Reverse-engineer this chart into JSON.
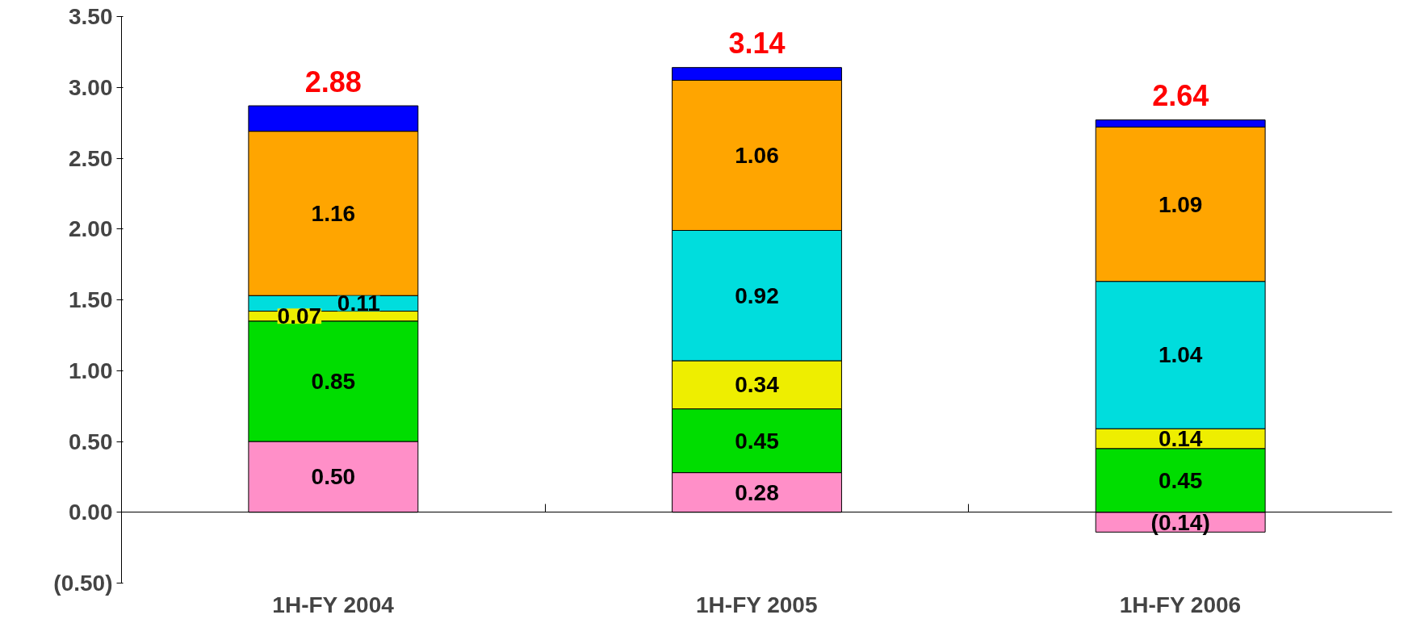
{
  "chart_data": {
    "type": "bar",
    "stacked": true,
    "categories": [
      "1H-FY 2004",
      "1H-FY 2005",
      "1H-FY 2006"
    ],
    "series": [
      {
        "color": "#ff8fc8",
        "values": [
          0.5,
          0.28,
          -0.14
        ],
        "value_labels": [
          "0.50",
          "0.28",
          "(0.14)"
        ]
      },
      {
        "color": "#00dd00",
        "values": [
          0.85,
          0.45,
          0.45
        ],
        "value_labels": [
          "0.85",
          "0.45",
          "0.45"
        ]
      },
      {
        "color": "#eeee00",
        "values": [
          0.07,
          0.34,
          0.14
        ],
        "value_labels": [
          "0.07",
          "0.34",
          "0.14"
        ]
      },
      {
        "color": "#00dddd",
        "values": [
          0.11,
          0.92,
          1.04
        ],
        "value_labels": [
          "0.11",
          "0.92",
          "1.04"
        ]
      },
      {
        "color": "#ffa500",
        "values": [
          1.16,
          1.06,
          1.09
        ],
        "value_labels": [
          "1.16",
          "1.06",
          "1.09"
        ]
      },
      {
        "color": "#0000ff",
        "values": [
          0.18,
          0.09,
          0.05
        ],
        "value_labels": [
          null,
          null,
          null
        ]
      }
    ],
    "totals": [
      "2.88",
      "3.14",
      "2.64"
    ],
    "ylim": [
      -0.5,
      3.5
    ],
    "yticks": [
      {
        "value": -0.5,
        "label": "(0.50)"
      },
      {
        "value": 0,
        "label": "0.00"
      },
      {
        "value": 0.5,
        "label": "0.50"
      },
      {
        "value": 1,
        "label": "1.00"
      },
      {
        "value": 1.5,
        "label": "1.50"
      },
      {
        "value": 2,
        "label": "2.00"
      },
      {
        "value": 2.5,
        "label": "2.50"
      },
      {
        "value": 3,
        "label": "3.00"
      },
      {
        "value": 3.5,
        "label": "3.50"
      }
    ],
    "ylabel": null
  }
}
